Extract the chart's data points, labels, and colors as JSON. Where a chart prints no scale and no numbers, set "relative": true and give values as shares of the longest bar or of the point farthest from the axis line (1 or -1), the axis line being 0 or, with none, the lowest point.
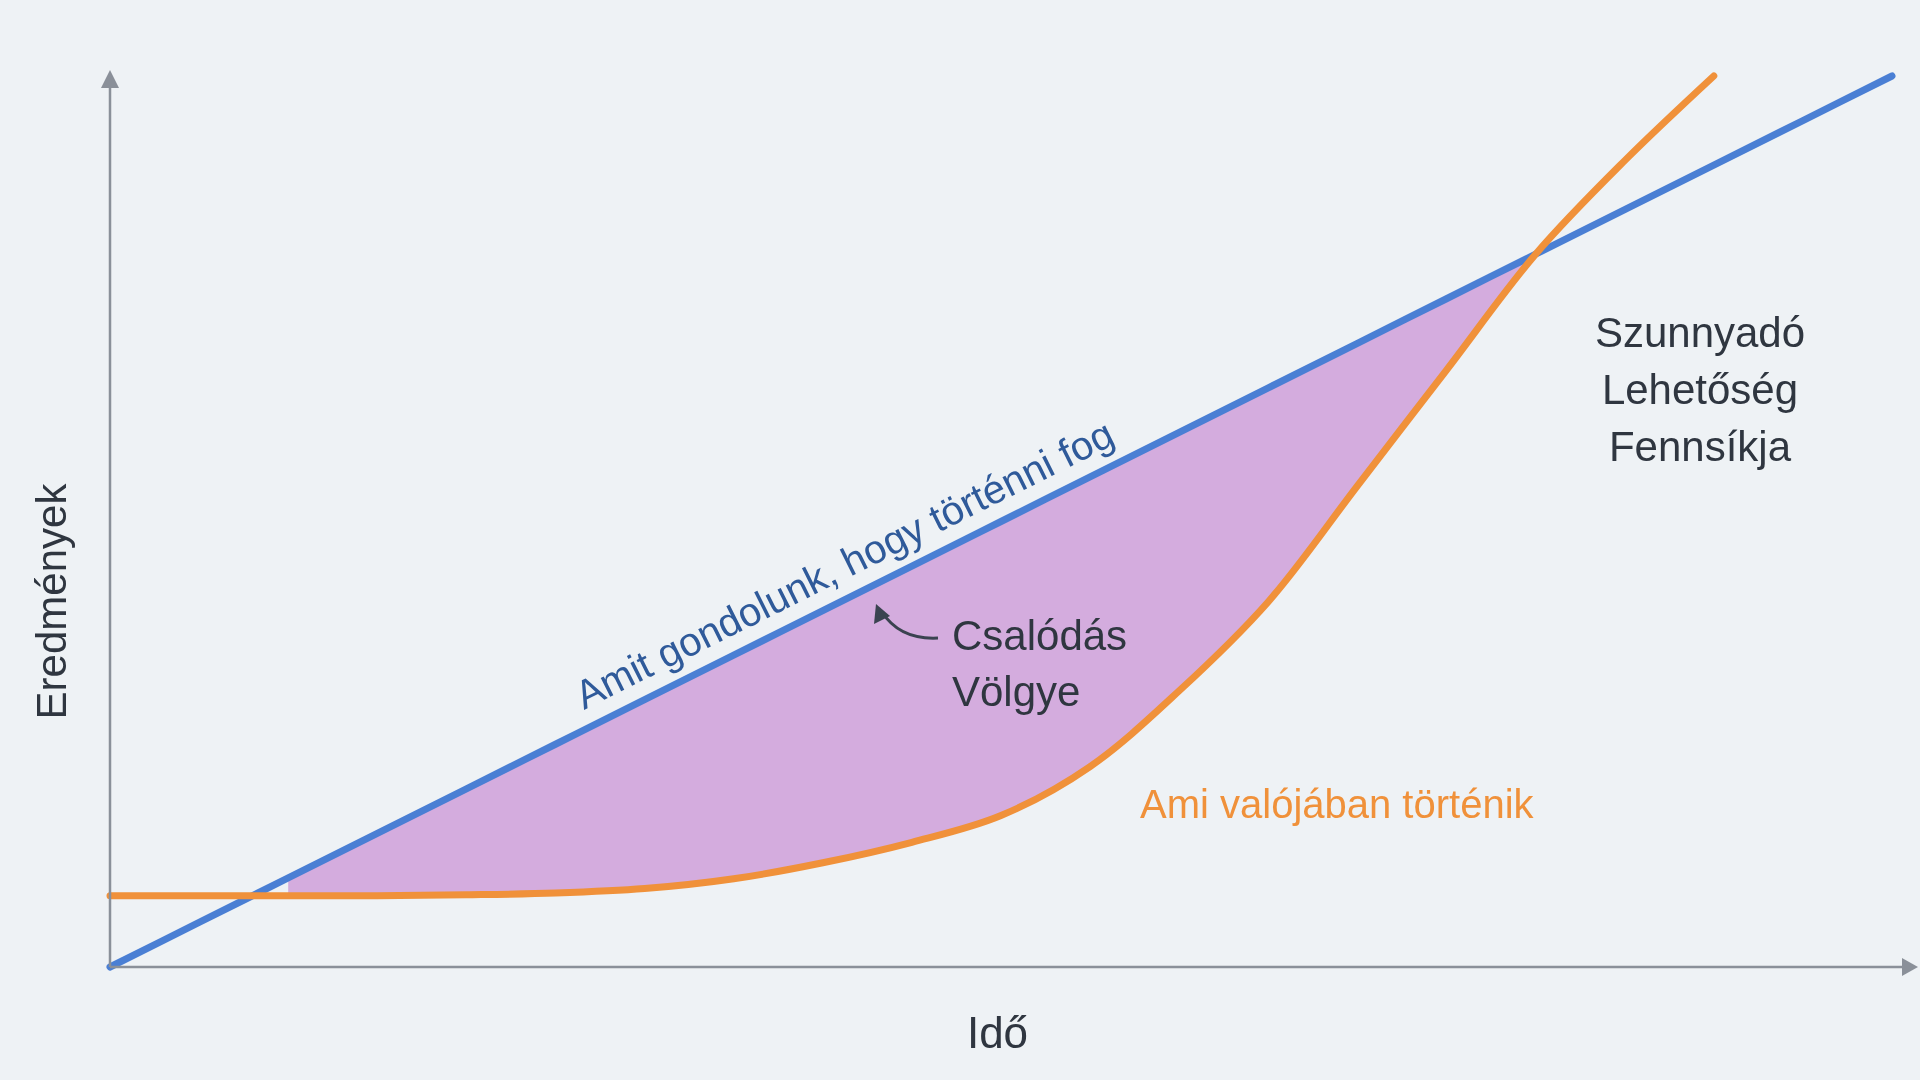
{
  "chart_data": {
    "type": "line",
    "relative": true,
    "xlabel": "Idő",
    "ylabel": "Eredmények",
    "marker": "none",
    "line_style": "solid",
    "categories": [
      null,
      null,
      null,
      null,
      null,
      null,
      null,
      null,
      null,
      null,
      null,
      null,
      null,
      null,
      null,
      null,
      null,
      null,
      null,
      null,
      null
    ],
    "series": [
      {
        "name": "Amit gondolunk, hogy történni fog",
        "color": "#4a7fd4",
        "values": [
          0,
          0.05,
          0.1,
          0.15,
          0.2,
          0.25,
          0.3,
          0.35,
          0.4,
          0.45,
          0.5,
          0.55,
          0.6,
          0.65,
          0.7,
          0.75,
          0.8,
          0.85,
          0.9,
          0.95,
          1
        ],
        "upper": [
          null,
          null,
          0.1,
          0.15,
          0.2,
          0.25,
          0.3,
          0.35,
          0.4,
          0.45,
          0.5,
          0.55,
          0.6,
          0.65,
          0.7,
          0.75,
          0.8,
          null,
          null,
          null,
          null
        ],
        "lower": [
          null,
          null,
          0.08,
          0.08,
          0.081,
          0.083,
          0.088,
          0.099,
          0.117,
          0.14,
          0.17,
          0.225,
          0.31,
          0.41,
          0.54,
          0.67,
          0.8,
          null,
          null,
          null,
          null
        ]
      },
      {
        "name": "Ami valójában történik",
        "color": "#f0913a",
        "values": [
          0.08,
          0.08,
          0.08,
          0.08,
          0.081,
          0.083,
          0.088,
          0.099,
          0.117,
          0.14,
          0.17,
          0.225,
          0.31,
          0.41,
          0.54,
          0.67,
          0.8,
          0.905,
          1,
          null,
          null
        ]
      }
    ],
    "annotations": [
      "Csalódás\nVölgye",
      "Szunnyadó\nLehetőség\nFennsíkja"
    ]
  }
}
